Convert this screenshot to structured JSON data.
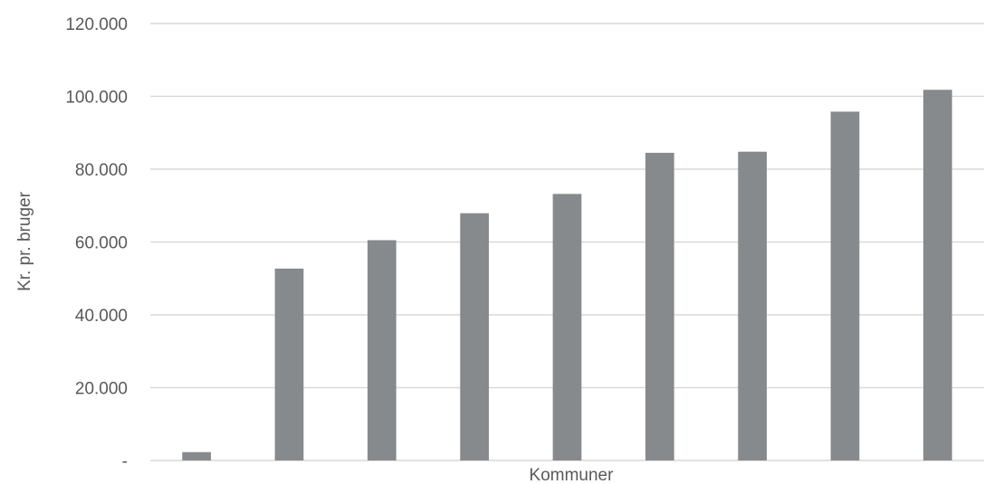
{
  "chart_data": {
    "type": "bar",
    "categories": [
      "",
      "",
      "",
      "",
      "",
      "",
      "",
      "",
      ""
    ],
    "values": [
      2300,
      52700,
      60500,
      67900,
      73200,
      84500,
      84800,
      95800,
      101800
    ],
    "xlabel": "Kommuner",
    "ylabel": "Kr. pr. bruger",
    "ylim": [
      0,
      120000
    ],
    "yticks": [
      0,
      20000,
      40000,
      60000,
      80000,
      100000,
      120000
    ],
    "ytick_labels": [
      "-",
      "20.000",
      "40.000",
      "60.000",
      "80.000",
      "100.000",
      "120.000"
    ],
    "grid": true,
    "legend": "none",
    "bar_color": "#878a8d"
  }
}
